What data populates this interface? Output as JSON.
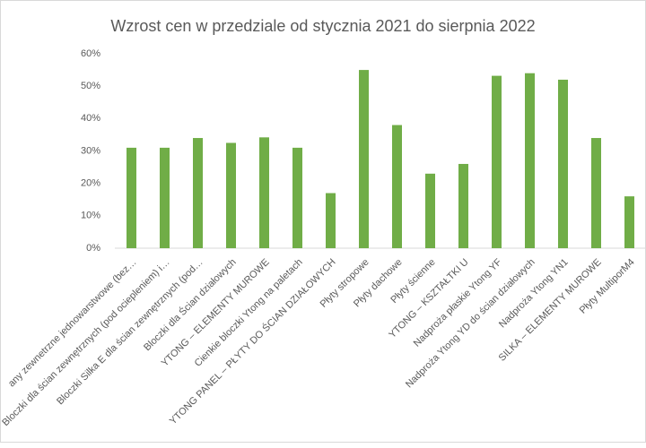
{
  "chart_data": {
    "type": "bar",
    "title": "Wzrost cen w przedziale od stycznia 2021 do sierpnia 2022",
    "categories": [
      "any zewnetrzne jednowarstwowe (bez…",
      "Bloczki dla ścian zewnętrznych (pod ociepleniem) i…",
      "Bloczki Silka E dla ścian zewnętrznych (pod…",
      "Bloczki dla Ścian działowych",
      "YTONG – ELEMENTY MUROWE",
      "Cienkie bloczki Ytong na paletach",
      "YTONG PANEL – PŁYTY DO ŚCIAN DZIAŁOWYCH",
      "Płyty stropowe",
      "Płyty dachowe",
      "Płyty ścienne",
      "YTONG – KSZTAŁTKI U",
      "Nadproża płaskie Ytong YF",
      "Nadproża Ytong YD do ścian działowych",
      "Nadproża Ytong YN1",
      "SILKA – ELEMENTY MUROWE",
      "Płyty MultiporM4"
    ],
    "values": [
      31,
      31,
      34,
      32.5,
      34.2,
      31,
      17,
      55,
      38,
      23,
      26,
      53.2,
      54,
      52,
      34,
      16
    ],
    "color": "#70ad47",
    "ylim": [
      0,
      60
    ],
    "yticks": [
      {
        "value": 0,
        "label": "0%"
      },
      {
        "value": 10,
        "label": "10%"
      },
      {
        "value": 20,
        "label": "20%"
      },
      {
        "value": 30,
        "label": "30%"
      },
      {
        "value": 40,
        "label": "40%"
      },
      {
        "value": 50,
        "label": "50%"
      },
      {
        "value": 60,
        "label": "60%"
      }
    ],
    "grid": false
  }
}
